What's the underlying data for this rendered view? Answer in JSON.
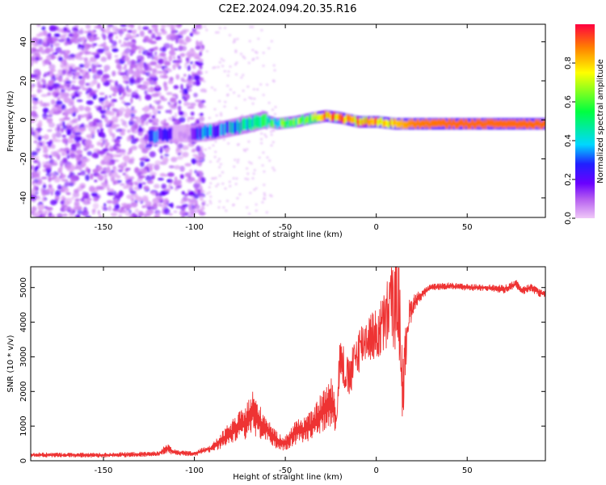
{
  "title": "C2E2.2024.094.20.35.R16",
  "chart_data": [
    {
      "type": "heatmap",
      "xlabel": "Height of straight line (km)",
      "ylabel": "Frequency (Hz)",
      "xlim": [
        -190,
        93
      ],
      "ylim": [
        -50,
        49
      ],
      "xticks": [
        -150,
        -100,
        -50,
        0,
        50
      ],
      "yticks": [
        -40,
        -20,
        0,
        20,
        40
      ],
      "colorbar": {
        "label": "Normalized spectral amplitude",
        "range": [
          0,
          1
        ],
        "ticks": [
          0.0,
          0.2,
          0.4,
          0.6,
          0.8
        ],
        "colors": [
          "#e8a8f4",
          "#8a00e0",
          "#2020ff",
          "#00e0ff",
          "#00ff40",
          "#ffff00",
          "#ff0000"
        ]
      },
      "ridge": {
        "description": "dominant frequency vs height",
        "x": [
          -122,
          -110,
          -100,
          -90,
          -80,
          -70,
          -62,
          -55,
          -45,
          -35,
          -28,
          -20,
          -10,
          0,
          10,
          20,
          40,
          60,
          80,
          93
        ],
        "y": [
          -8,
          -7,
          -7,
          -6,
          -4,
          -2,
          0,
          -2,
          -1,
          1,
          2,
          1,
          -1,
          -1,
          -2,
          -2,
          -2,
          -2,
          -2,
          -2
        ],
        "amplitude": [
          0.35,
          0.1,
          0.25,
          0.3,
          0.35,
          0.4,
          0.45,
          0.5,
          0.55,
          0.65,
          0.8,
          0.85,
          0.8,
          0.85,
          0.8,
          0.88,
          0.9,
          0.9,
          0.9,
          0.9
        ]
      },
      "noise_region_x": [
        -190,
        -95
      ],
      "grid": false
    },
    {
      "type": "line",
      "xlabel": "Height of straight line (km)",
      "ylabel": "SNR (10 * v/v)",
      "xlim": [
        -190,
        93
      ],
      "ylim": [
        0,
        5600
      ],
      "xticks": [
        -150,
        -100,
        -50,
        0,
        50
      ],
      "yticks": [
        0,
        1000,
        2000,
        3000,
        4000,
        5000
      ],
      "color": "#ee3333",
      "grid": false,
      "series": [
        {
          "x": [
            -190,
            -150,
            -120,
            -115,
            -110,
            -100,
            -90,
            -80,
            -72,
            -68,
            -64,
            -60,
            -55,
            -50,
            -45,
            -40,
            -35,
            -30,
            -25,
            -22,
            -20,
            -15,
            -10,
            -5,
            0,
            5,
            8,
            10,
            12,
            14,
            15,
            17,
            20,
            25,
            30,
            40,
            50,
            60,
            70,
            77,
            80,
            85,
            90,
            93
          ],
          "y": [
            170,
            160,
            200,
            350,
            230,
            200,
            380,
            800,
            1100,
            1400,
            1100,
            900,
            600,
            500,
            800,
            900,
            1000,
            1400,
            1700,
            1200,
            3000,
            2300,
            3200,
            3600,
            3600,
            4000,
            4600,
            4400,
            4900,
            2600,
            2000,
            4000,
            4500,
            4800,
            5000,
            5050,
            5000,
            5000,
            4950,
            5100,
            4900,
            5000,
            4850,
            4800
          ],
          "envelope": [
            140,
            150,
            150,
            300,
            150,
            150,
            250,
            700,
            1000,
            1300,
            1000,
            800,
            500,
            450,
            700,
            800,
            900,
            1200,
            1500,
            1000,
            1400,
            1200,
            1400,
            1400,
            1600,
            2000,
            2500,
            2500,
            3000,
            2500,
            2200,
            1200,
            600,
            300,
            200,
            200,
            200,
            200,
            250,
            250,
            250,
            250,
            250,
            250
          ]
        }
      ]
    }
  ]
}
